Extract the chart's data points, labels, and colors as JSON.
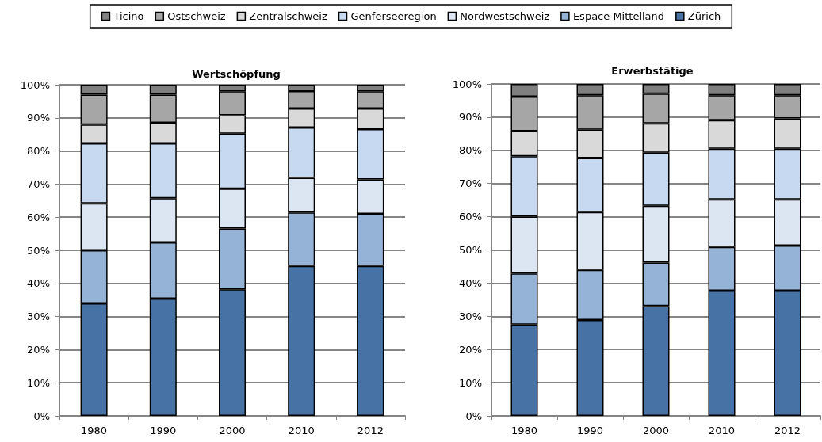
{
  "chart_data": [
    {
      "type": "bar",
      "title": "Wertschöpfung",
      "stacked": true,
      "legend": "top",
      "grid": "y",
      "categories": [
        "1980",
        "1990",
        "2000",
        "2010",
        "2012"
      ],
      "ylim": [
        0,
        100
      ],
      "yticks": [
        {
          "value": 0,
          "label": "0%"
        },
        {
          "value": 10,
          "label": "10%"
        },
        {
          "value": 20,
          "label": "20%"
        },
        {
          "value": 30,
          "label": "30%"
        },
        {
          "value": 40,
          "label": "40%"
        },
        {
          "value": 50,
          "label": "50%"
        },
        {
          "value": 60,
          "label": "60%"
        },
        {
          "value": 70,
          "label": "70%"
        },
        {
          "value": 80,
          "label": "80%"
        },
        {
          "value": 90,
          "label": "90%"
        },
        {
          "value": 100,
          "label": "100%"
        }
      ],
      "series": [
        {
          "name": "Zürich",
          "color": "#4672a6",
          "values": [
            34,
            35.4,
            38.2,
            45.3,
            45.3
          ]
        },
        {
          "name": "Espace Mittelland",
          "color": "#95b3d7",
          "values": [
            16,
            17,
            18.4,
            16.1,
            15.7
          ]
        },
        {
          "name": "Nordwestschweiz",
          "color": "#dce6f2",
          "values": [
            14.2,
            13.3,
            12,
            10.5,
            10.4
          ]
        },
        {
          "name": "Genferseeregion",
          "color": "#c6d9f1",
          "values": [
            18.1,
            16.6,
            16.6,
            15.2,
            15.2
          ]
        },
        {
          "name": "Zentralschweiz",
          "color": "#d9d9d9",
          "values": [
            5.7,
            6.2,
            5.6,
            5.7,
            6.2
          ]
        },
        {
          "name": "Ostschweiz",
          "color": "#a6a6a6",
          "values": [
            9,
            8.5,
            7.2,
            5.3,
            5.2
          ]
        },
        {
          "name": "Ticino",
          "color": "#7f7f7f",
          "values": [
            3,
            3,
            2,
            1.9,
            2
          ]
        }
      ]
    },
    {
      "type": "bar",
      "title": "Erwerbstätige",
      "stacked": true,
      "grid": "y",
      "categories": [
        "1980",
        "1990",
        "2000",
        "2010",
        "2012"
      ],
      "ylim": [
        0,
        100
      ],
      "yticks": [
        {
          "value": 0,
          "label": "0%"
        },
        {
          "value": 10,
          "label": "10%"
        },
        {
          "value": 20,
          "label": "20%"
        },
        {
          "value": 30,
          "label": "30%"
        },
        {
          "value": 40,
          "label": "40%"
        },
        {
          "value": 50,
          "label": "50%"
        },
        {
          "value": 60,
          "label": "60%"
        },
        {
          "value": 70,
          "label": "70%"
        },
        {
          "value": 80,
          "label": "80%"
        },
        {
          "value": 90,
          "label": "90%"
        },
        {
          "value": 100,
          "label": "100%"
        }
      ],
      "series": [
        {
          "color": "#4672a6",
          "values": [
            27.5,
            28.9,
            33.1,
            37.7,
            37.7
          ]
        },
        {
          "color": "#95b3d7",
          "values": [
            15.4,
            15.1,
            13.1,
            13.2,
            13.6
          ]
        },
        {
          "color": "#dce6f2",
          "values": [
            17.1,
            17.4,
            17.1,
            14.3,
            13.9
          ]
        },
        {
          "color": "#c6d9f1",
          "values": [
            18.2,
            16.3,
            16,
            15.3,
            15.3
          ]
        },
        {
          "color": "#d9d9d9",
          "values": [
            7.6,
            8.5,
            8.8,
            8.6,
            9.1
          ]
        },
        {
          "color": "#a6a6a6",
          "values": [
            10.4,
            10.4,
            9,
            7.5,
            7
          ]
        },
        {
          "color": "#7f7f7f",
          "values": [
            3.8,
            3.4,
            2.9,
            3.4,
            3.4
          ]
        }
      ]
    }
  ]
}
